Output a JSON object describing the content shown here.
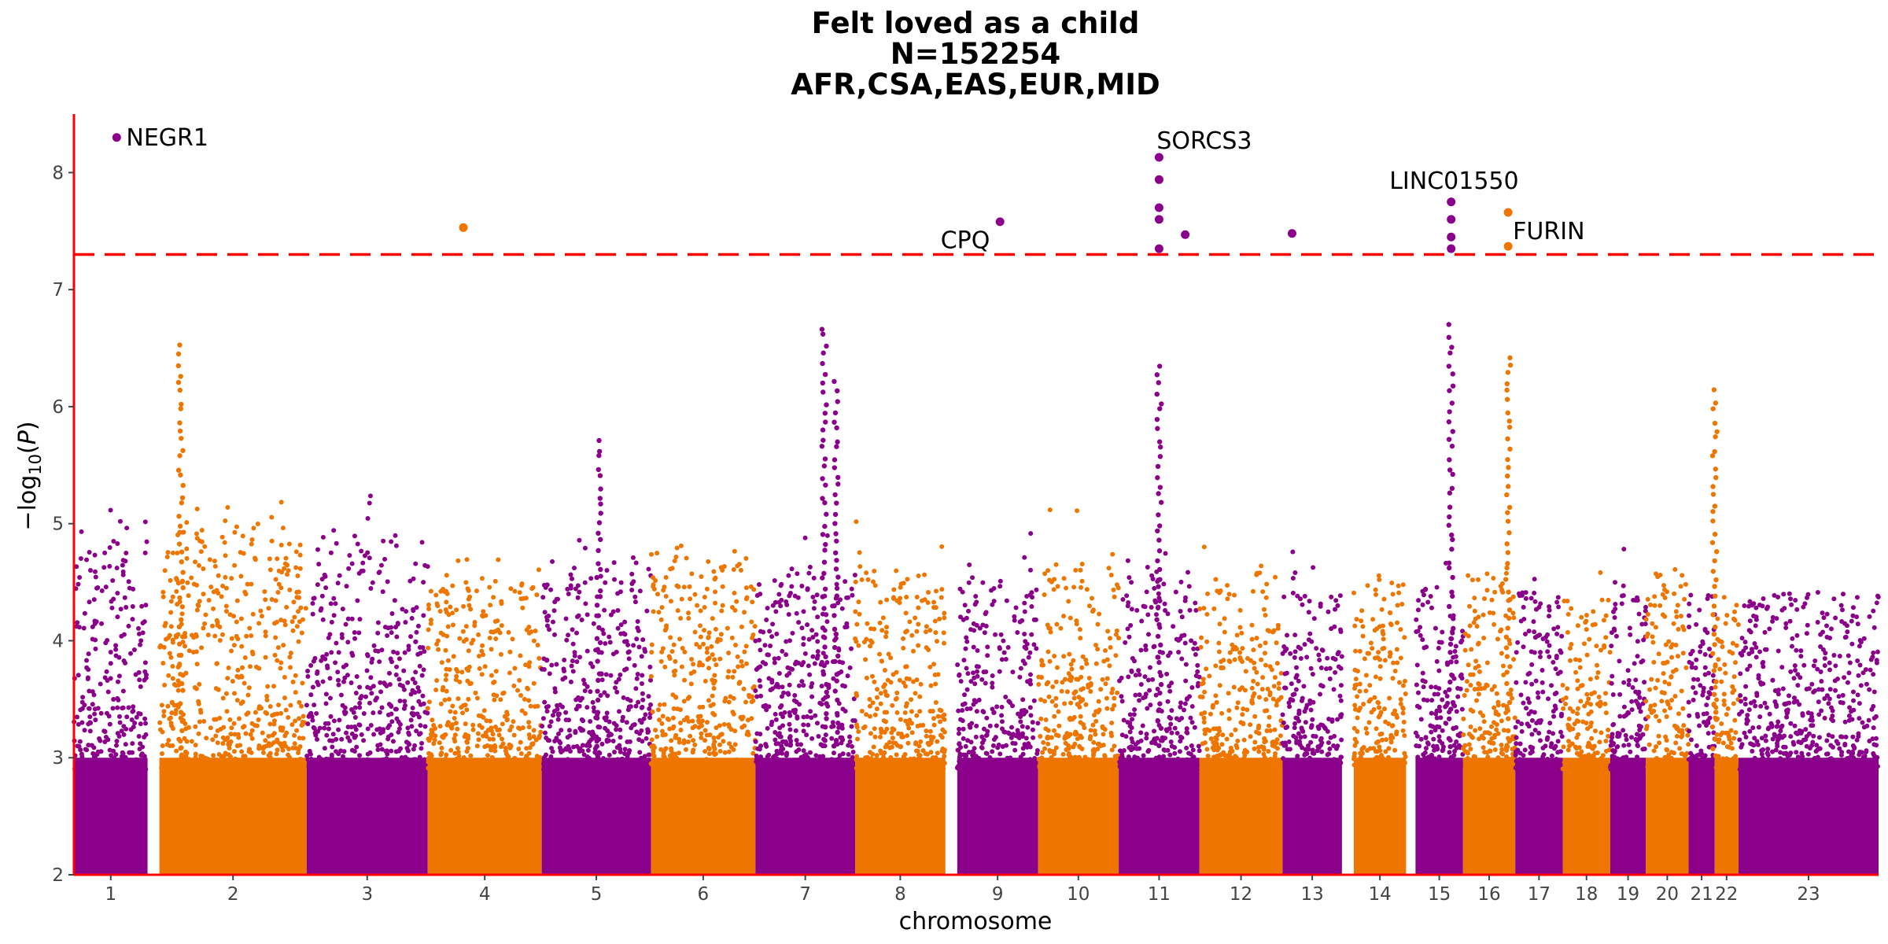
{
  "chart_data": {
    "type": "scatter",
    "subtype": "manhattan",
    "title": [
      "Felt loved as a child",
      "N=152254",
      "AFR,CSA,EAS,EUR,MID"
    ],
    "xlabel": "chromosome",
    "ylabel": "-log10(P)",
    "ylim": [
      2,
      8.5
    ],
    "y_ticks": [
      2,
      3,
      4,
      5,
      6,
      7,
      8
    ],
    "significance_threshold": 7.3,
    "colors": {
      "odd": "#8b008b",
      "even": "#ee7600",
      "threshold": "#ff0000",
      "axis": "#ff0000"
    },
    "chromosomes": [
      {
        "label": "1",
        "start": 0,
        "end": 1.55,
        "peak": 5.0
      },
      {
        "label": "2",
        "start": 1.8,
        "end": 4.9,
        "peak": 5.0
      },
      {
        "label": "3",
        "start": 4.9,
        "end": 7.45,
        "peak": 4.9
      },
      {
        "label": "4",
        "start": 7.45,
        "end": 9.85,
        "peak": 4.5
      },
      {
        "label": "5",
        "start": 9.85,
        "end": 12.15,
        "peak": 4.6
      },
      {
        "label": "6",
        "start": 12.15,
        "end": 14.35,
        "peak": 4.8
      },
      {
        "label": "7",
        "start": 14.35,
        "end": 16.45,
        "peak": 4.6
      },
      {
        "label": "8",
        "start": 16.45,
        "end": 18.35,
        "peak": 4.6
      },
      {
        "label": "9",
        "start": 18.6,
        "end": 20.3,
        "peak": 4.5
      },
      {
        "label": "10",
        "start": 20.3,
        "end": 22.0,
        "peak": 4.7
      },
      {
        "label": "11",
        "start": 22.0,
        "end": 23.7,
        "peak": 4.6
      },
      {
        "label": "12",
        "start": 23.7,
        "end": 25.45,
        "peak": 4.6
      },
      {
        "label": "13",
        "start": 25.45,
        "end": 26.7,
        "peak": 4.4
      },
      {
        "label": "14",
        "start": 26.95,
        "end": 28.05,
        "peak": 4.5
      },
      {
        "label": "15",
        "start": 28.25,
        "end": 29.25,
        "peak": 4.5
      },
      {
        "label": "16",
        "start": 29.25,
        "end": 30.35,
        "peak": 4.6
      },
      {
        "label": "17",
        "start": 30.35,
        "end": 31.35,
        "peak": 4.5
      },
      {
        "label": "18",
        "start": 31.35,
        "end": 32.35,
        "peak": 4.4
      },
      {
        "label": "19",
        "start": 32.35,
        "end": 33.1,
        "peak": 4.4
      },
      {
        "label": "20",
        "start": 33.1,
        "end": 34.0,
        "peak": 4.6
      },
      {
        "label": "21",
        "start": 34.0,
        "end": 34.55,
        "peak": 4.4
      },
      {
        "label": "22",
        "start": 34.55,
        "end": 35.05,
        "peak": 4.3
      },
      {
        "label": "23",
        "start": 35.05,
        "end": 38.0,
        "peak": 4.4
      }
    ],
    "highlights": [
      {
        "x": 0.9,
        "y": 8.3
      },
      {
        "x": 8.2,
        "y": 7.53
      },
      {
        "x": 19.5,
        "y": 7.58
      },
      {
        "x": 22.85,
        "y": 8.13
      },
      {
        "x": 22.85,
        "y": 7.94
      },
      {
        "x": 22.85,
        "y": 7.7
      },
      {
        "x": 22.85,
        "y": 7.6
      },
      {
        "x": 22.85,
        "y": 7.35
      },
      {
        "x": 23.4,
        "y": 7.47
      },
      {
        "x": 25.65,
        "y": 7.48
      },
      {
        "x": 29.0,
        "y": 7.75
      },
      {
        "x": 29.0,
        "y": 7.6
      },
      {
        "x": 29.0,
        "y": 7.45
      },
      {
        "x": 29.0,
        "y": 7.35
      },
      {
        "x": 30.2,
        "y": 7.66
      },
      {
        "x": 30.2,
        "y": 7.37
      }
    ],
    "annotations": [
      {
        "text": "NEGR1",
        "x": 1.1,
        "y": 8.3
      },
      {
        "text": "CPQ",
        "x": 18.25,
        "y": 7.42
      },
      {
        "text": "SORCS3",
        "x": 22.8,
        "y": 8.27
      },
      {
        "text": "LINC01550",
        "x": 27.7,
        "y": 7.93
      },
      {
        "text": "FURIN",
        "x": 30.3,
        "y": 7.5
      }
    ],
    "lead_snp_towers": [
      {
        "x": 2.25,
        "top": 6.6
      },
      {
        "x": 22.85,
        "top": 6.4
      },
      {
        "x": 29.0,
        "top": 6.7
      },
      {
        "x": 15.8,
        "top": 6.7
      },
      {
        "x": 11.05,
        "top": 5.8
      },
      {
        "x": 34.55,
        "top": 6.2
      },
      {
        "x": 30.2,
        "top": 6.45
      },
      {
        "x": 16.05,
        "top": 6.25
      }
    ]
  }
}
